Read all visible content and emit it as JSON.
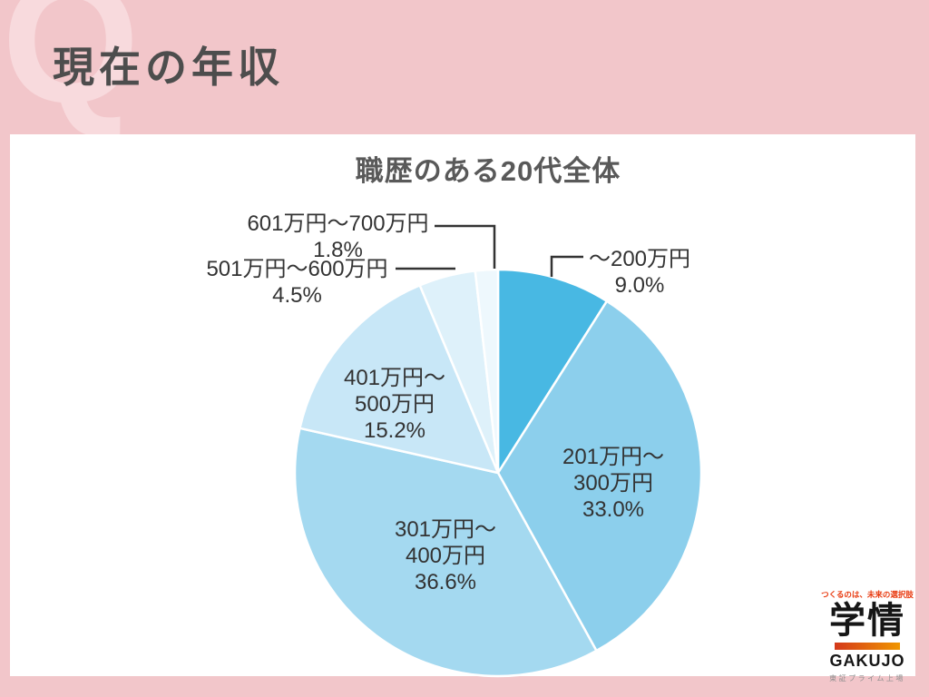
{
  "header": {
    "watermark": "Q",
    "title": "現在の年収"
  },
  "chart_data": {
    "type": "pie",
    "title": "職歴のある20代全体",
    "values_are_percent": true,
    "start_angle_deg_from_top": 0,
    "direction": "clockwise",
    "slices": [
      {
        "label": "〜200万円",
        "value": 9.0,
        "color": "#48b8e3"
      },
      {
        "label": "201万円〜300万円",
        "value": 33.0,
        "color": "#8ccfec"
      },
      {
        "label": "301万円〜400万円",
        "value": 36.6,
        "color": "#a4d9f0"
      },
      {
        "label": "401万円〜500万円",
        "value": 15.2,
        "color": "#c8e7f7"
      },
      {
        "label": "501万円〜600万円",
        "value": 4.5,
        "color": "#def1fa"
      },
      {
        "label": "601万円〜700万円",
        "value": 1.8,
        "color": "#eef8fd"
      }
    ]
  },
  "pie_labels": [
    {
      "lines": [
        "〜200万円"
      ],
      "percent": "9.0%"
    },
    {
      "lines": [
        "201万円〜",
        "300万円"
      ],
      "percent": "33.0%"
    },
    {
      "lines": [
        "301万円〜",
        "400万円"
      ],
      "percent": "36.6%"
    },
    {
      "lines": [
        "401万円〜",
        "500万円"
      ],
      "percent": "15.2%"
    },
    {
      "lines": [
        "501万円〜600万円"
      ],
      "percent": "4.5%"
    },
    {
      "lines": [
        "601万円〜700万円"
      ],
      "percent": "1.8%"
    }
  ],
  "logo": {
    "tagline": "つくるのは、未来の選択肢",
    "name": "学情",
    "name_en": "GAKUJO",
    "listing": "東証プライム上場"
  },
  "colors": {
    "background_pink": "#f2c6ca",
    "watermark_pink": "#f8dadd",
    "title_gray": "#4d4d4d",
    "label_gray": "#333333",
    "callout_line": "#333333",
    "logo_red": "#e8380d",
    "logo_gradient_end": "#f09600"
  }
}
